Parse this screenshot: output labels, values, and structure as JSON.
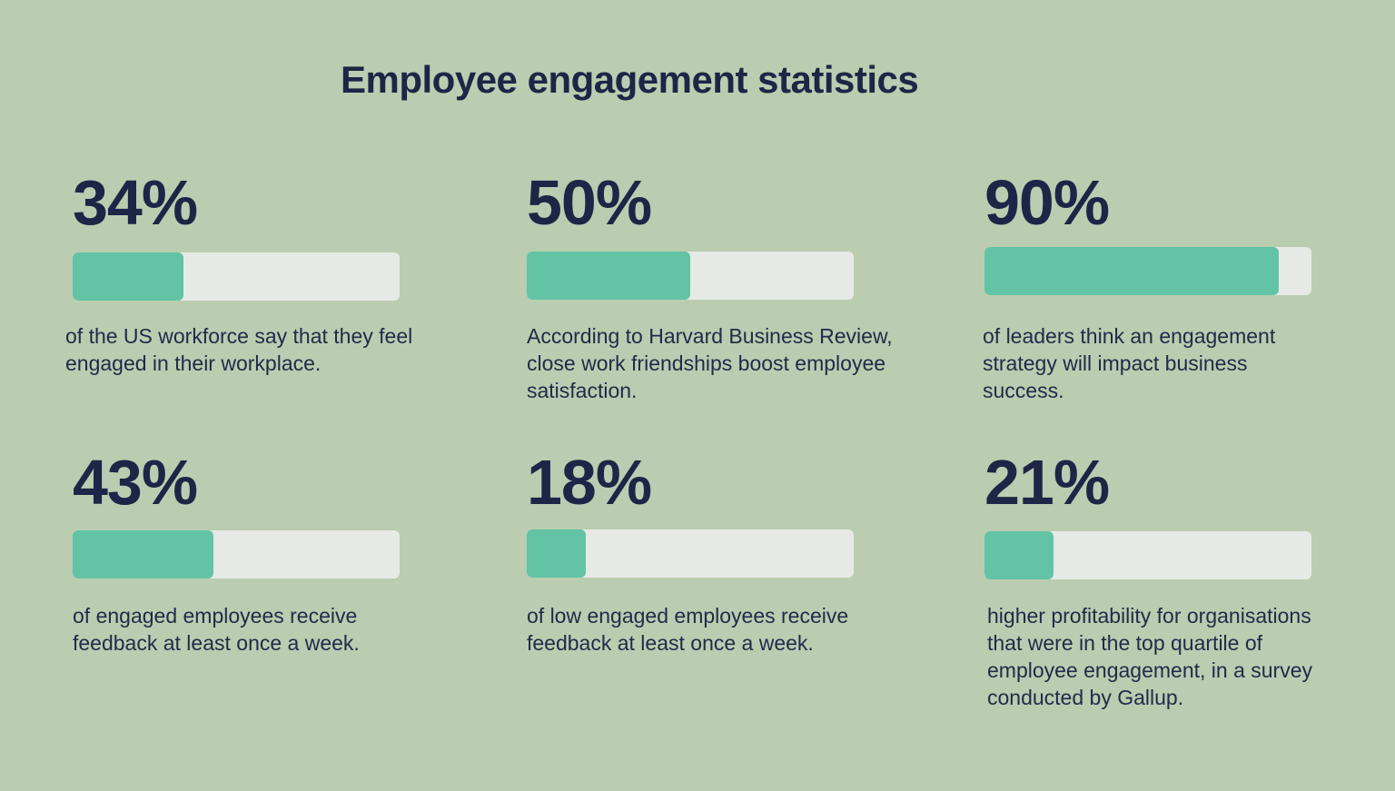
{
  "title": "Employee engagement statistics",
  "colors": {
    "background": "#bacdb0",
    "text": "#1e2547",
    "bar_track": "#e7e9e6",
    "bar_fill": "#62c3a5"
  },
  "chart_data": {
    "type": "bar",
    "title": "Employee engagement statistics",
    "orientation": "horizontal-progress",
    "ylim": [
      0,
      100
    ],
    "categories": [
      "34%",
      "50%",
      "90%",
      "43%",
      "18%",
      "21%"
    ],
    "values": [
      34,
      50,
      90,
      43,
      18,
      21
    ]
  },
  "stats": [
    {
      "label": "34%",
      "value": 34,
      "description": "of the US workforce say that they feel engaged in their workplace."
    },
    {
      "label": "50%",
      "value": 50,
      "description": "According to Harvard Business Review, close work friendships boost employee satisfaction."
    },
    {
      "label": "90%",
      "value": 90,
      "description": "of leaders think an engagement strategy will impact business success."
    },
    {
      "label": "43%",
      "value": 43,
      "description": "of engaged employees receive feedback at least once a week."
    },
    {
      "label": "18%",
      "value": 18,
      "description": "of low engaged employees receive feedback at least once a week."
    },
    {
      "label": "21%",
      "value": 21,
      "description": "higher profitability for organisations that were in the top quartile of employee engagement, in a survey conducted by Gallup."
    }
  ]
}
